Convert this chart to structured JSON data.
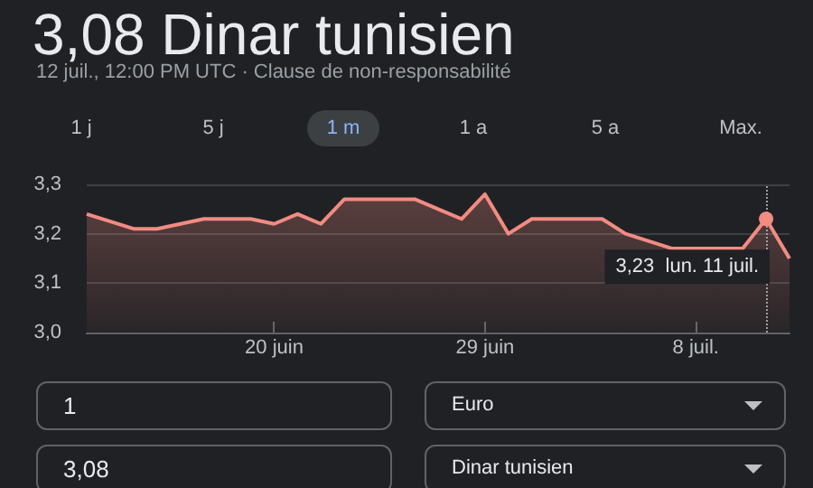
{
  "chart_data": {
    "type": "area",
    "title": "3,08 Dinar tunisien",
    "subtitle": "12 juil., 12:00 PM UTC · Clause de non-responsabilité",
    "x": [
      "--06-12",
      "--06-14",
      "--06-15",
      "--06-17",
      "--06-19",
      "--06-20",
      "--06-21",
      "--06-22",
      "--06-23",
      "--06-24",
      "--06-26",
      "--06-27",
      "--06-28",
      "--06-29",
      "--06-30",
      "--07-01",
      "--07-04",
      "--07-05",
      "--07-07",
      "--07-10",
      "--07-11",
      "--07-12"
    ],
    "series": [
      {
        "color": "#f28b82",
        "values": [
          3.24,
          3.21,
          3.21,
          3.23,
          3.23,
          3.22,
          3.24,
          3.22,
          3.27,
          3.27,
          3.27,
          3.25,
          3.23,
          3.28,
          3.2,
          3.23,
          3.23,
          3.2,
          3.17,
          3.17,
          3.23,
          3.15
        ]
      }
    ],
    "xlim": [
      "--06-12",
      "--07-12"
    ],
    "xticks": [
      {
        "value": "--06-20",
        "label": "20 juin"
      },
      {
        "value": "--06-29",
        "label": "29 juin"
      },
      {
        "value": "--07-08",
        "label": "8 juil."
      }
    ],
    "ylim": [
      3.0,
      3.3
    ],
    "yticks": [
      {
        "value": 3.0,
        "label": "3,0"
      },
      {
        "value": 3.1,
        "label": "3,1"
      },
      {
        "value": 3.2,
        "label": "3,2"
      },
      {
        "value": 3.3,
        "label": "3,3"
      }
    ],
    "grid": "y",
    "ref_lines": [
      {
        "axis": "x",
        "value": "--07-11",
        "color": "#9aa0a6",
        "line_style": "dotted"
      }
    ],
    "annotations": [
      "1 j",
      "5 j",
      "1 m",
      "1 a",
      "5 a",
      "Max.",
      "1",
      "Euro",
      "3,08",
      "Dinar tunisien",
      {
        "text": "3,23  lun. 11 juil.",
        "x": "--07-11",
        "y": 3.23
      }
    ]
  }
}
